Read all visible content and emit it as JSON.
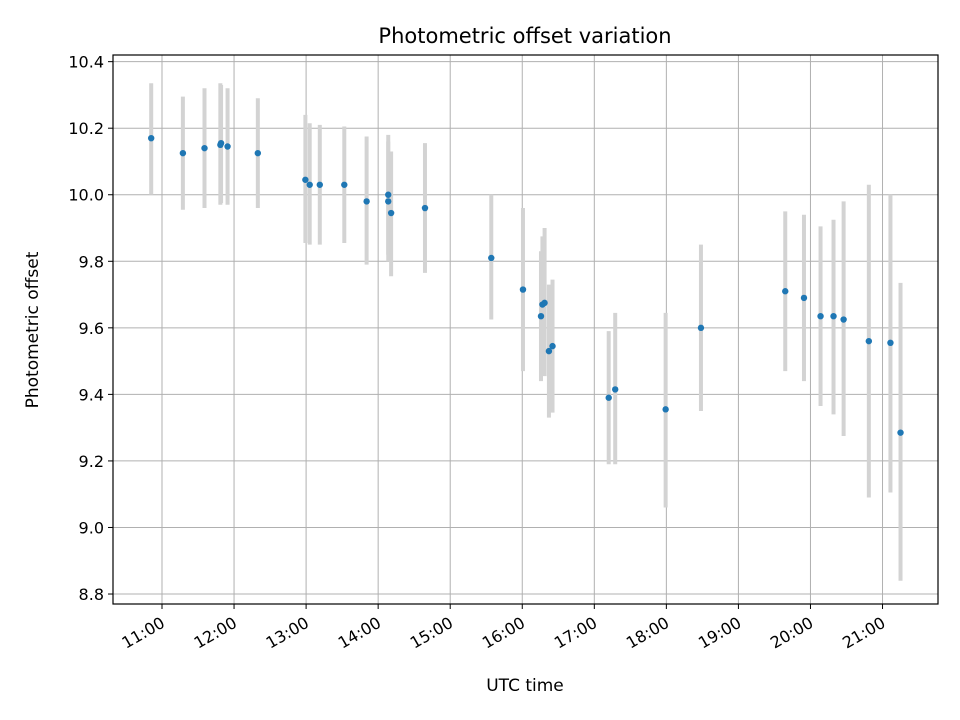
{
  "chart_data": {
    "type": "scatter",
    "title": "Photometric offset variation",
    "xlabel": "UTC time",
    "ylabel": "Photometric offset",
    "x_unit": "hours UTC",
    "xlim": [
      10.32,
      21.77
    ],
    "ylim": [
      8.77,
      10.42
    ],
    "x_ticks": [
      {
        "value": 11,
        "label": "11:00"
      },
      {
        "value": 12,
        "label": "12:00"
      },
      {
        "value": 13,
        "label": "13:00"
      },
      {
        "value": 14,
        "label": "14:00"
      },
      {
        "value": 15,
        "label": "15:00"
      },
      {
        "value": 16,
        "label": "16:00"
      },
      {
        "value": 17,
        "label": "17:00"
      },
      {
        "value": 18,
        "label": "18:00"
      },
      {
        "value": 19,
        "label": "19:00"
      },
      {
        "value": 20,
        "label": "20:00"
      },
      {
        "value": 21,
        "label": "21:00"
      }
    ],
    "y_ticks": [
      {
        "value": 8.8,
        "label": "8.8"
      },
      {
        "value": 9.0,
        "label": "9.0"
      },
      {
        "value": 9.2,
        "label": "9.2"
      },
      {
        "value": 9.4,
        "label": "9.4"
      },
      {
        "value": 9.6,
        "label": "9.6"
      },
      {
        "value": 9.8,
        "label": "9.8"
      },
      {
        "value": 10.0,
        "label": "10.0"
      },
      {
        "value": 10.2,
        "label": "10.2"
      },
      {
        "value": 10.4,
        "label": "10.4"
      }
    ],
    "grid": true,
    "point_color": "#1f77b4",
    "errorbar_color": "#d3d3d3",
    "points": [
      {
        "x": 10.85,
        "y": 10.17,
        "lo": 10.0,
        "hi": 10.335
      },
      {
        "x": 11.29,
        "y": 10.125,
        "lo": 9.955,
        "hi": 10.295
      },
      {
        "x": 11.59,
        "y": 10.14,
        "lo": 9.96,
        "hi": 10.32
      },
      {
        "x": 11.81,
        "y": 10.15,
        "lo": 9.97,
        "hi": 10.335
      },
      {
        "x": 11.82,
        "y": 10.155,
        "lo": 9.975,
        "hi": 10.33
      },
      {
        "x": 11.91,
        "y": 10.145,
        "lo": 9.97,
        "hi": 10.32
      },
      {
        "x": 12.33,
        "y": 10.125,
        "lo": 9.96,
        "hi": 10.29
      },
      {
        "x": 12.99,
        "y": 10.045,
        "lo": 9.855,
        "hi": 10.24
      },
      {
        "x": 13.05,
        "y": 10.03,
        "lo": 9.85,
        "hi": 10.215
      },
      {
        "x": 13.19,
        "y": 10.03,
        "lo": 9.85,
        "hi": 10.21
      },
      {
        "x": 13.53,
        "y": 10.03,
        "lo": 9.855,
        "hi": 10.205
      },
      {
        "x": 13.84,
        "y": 9.98,
        "lo": 9.79,
        "hi": 10.175
      },
      {
        "x": 14.14,
        "y": 10.0,
        "lo": 9.82,
        "hi": 10.18
      },
      {
        "x": 14.14,
        "y": 9.98,
        "lo": 9.8,
        "hi": 10.16
      },
      {
        "x": 14.18,
        "y": 9.945,
        "lo": 9.755,
        "hi": 10.13
      },
      {
        "x": 14.65,
        "y": 9.96,
        "lo": 9.765,
        "hi": 10.155
      },
      {
        "x": 15.57,
        "y": 9.81,
        "lo": 9.625,
        "hi": 10.0
      },
      {
        "x": 16.01,
        "y": 9.715,
        "lo": 9.47,
        "hi": 9.96
      },
      {
        "x": 16.26,
        "y": 9.635,
        "lo": 9.44,
        "hi": 9.83
      },
      {
        "x": 16.28,
        "y": 9.67,
        "lo": 9.46,
        "hi": 9.875
      },
      {
        "x": 16.31,
        "y": 9.675,
        "lo": 9.455,
        "hi": 9.9
      },
      {
        "x": 16.37,
        "y": 9.53,
        "lo": 9.33,
        "hi": 9.73
      },
      {
        "x": 16.42,
        "y": 9.545,
        "lo": 9.345,
        "hi": 9.745
      },
      {
        "x": 17.2,
        "y": 9.39,
        "lo": 9.19,
        "hi": 9.59
      },
      {
        "x": 17.29,
        "y": 9.415,
        "lo": 9.19,
        "hi": 9.645
      },
      {
        "x": 17.99,
        "y": 9.355,
        "lo": 9.06,
        "hi": 9.645
      },
      {
        "x": 18.48,
        "y": 9.6,
        "lo": 9.35,
        "hi": 9.85
      },
      {
        "x": 19.65,
        "y": 9.71,
        "lo": 9.47,
        "hi": 9.95
      },
      {
        "x": 19.91,
        "y": 9.69,
        "lo": 9.44,
        "hi": 9.94
      },
      {
        "x": 20.14,
        "y": 9.635,
        "lo": 9.365,
        "hi": 9.905
      },
      {
        "x": 20.32,
        "y": 9.635,
        "lo": 9.34,
        "hi": 9.925
      },
      {
        "x": 20.46,
        "y": 9.625,
        "lo": 9.275,
        "hi": 9.98
      },
      {
        "x": 20.81,
        "y": 9.56,
        "lo": 9.09,
        "hi": 10.03
      },
      {
        "x": 21.11,
        "y": 9.555,
        "lo": 9.105,
        "hi": 10.0
      },
      {
        "x": 21.25,
        "y": 9.285,
        "lo": 8.84,
        "hi": 9.735
      }
    ]
  }
}
